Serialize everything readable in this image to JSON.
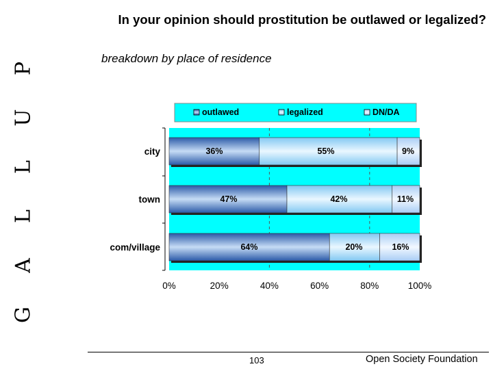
{
  "brand": {
    "letters": [
      "G",
      "A",
      "L",
      "L",
      "U",
      "P"
    ]
  },
  "title": "In your opinion should prostitution be outlawed or legalized?",
  "subtitle": "breakdown by place of residence",
  "footer": {
    "page_number": "103",
    "organization": "Open Society Foundation"
  },
  "colors": {
    "plot_background": "#00ffff",
    "legend_background": "#00ffff",
    "outlawed": "#3366cc",
    "legalized": "#9fd6f7",
    "dn_da": "#cfe4ff"
  },
  "chart_data": {
    "type": "bar",
    "orientation": "horizontal",
    "stacked": true,
    "categories": [
      "city",
      "town",
      "com/village"
    ],
    "series": [
      {
        "name": "outlawed",
        "values": [
          36,
          47,
          64
        ],
        "labels": [
          "36%",
          "47%",
          "64%"
        ]
      },
      {
        "name": "legalized",
        "values": [
          55,
          42,
          20
        ],
        "labels": [
          "55%",
          "42%",
          "20%"
        ]
      },
      {
        "name": "DN/DA",
        "values": [
          9,
          11,
          16
        ],
        "labels": [
          "9%",
          "11%",
          "16%"
        ]
      }
    ],
    "x_ticks": [
      "0%",
      "20%",
      "40%",
      "60%",
      "80%",
      "100%"
    ],
    "xlim": [
      0,
      100
    ],
    "grid": "dashed vertical at 40% and 80%",
    "legend_position": "top"
  }
}
